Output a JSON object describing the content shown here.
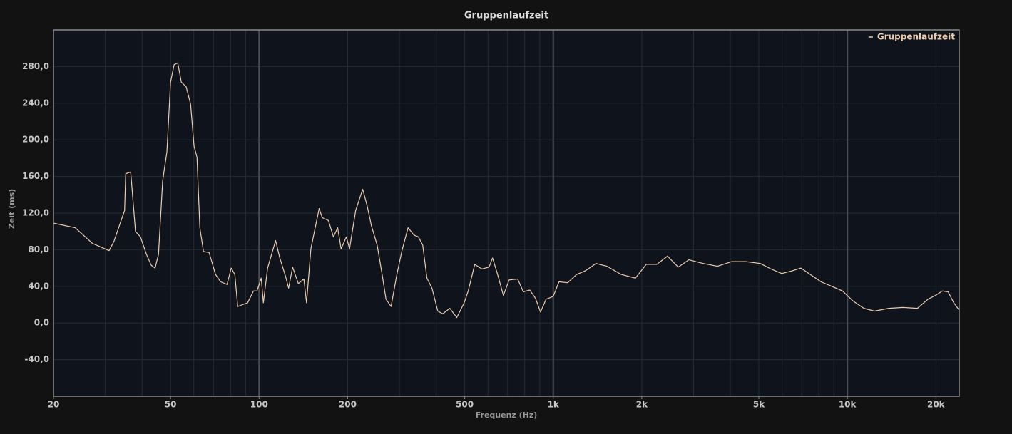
{
  "chart_data": {
    "type": "line",
    "title": "Gruppenlaufzeit",
    "x_label": "Frequenz (Hz)",
    "y_label": "Zeit (ms)",
    "x_scale": "log",
    "xlim": [
      20,
      24000
    ],
    "ylim": [
      -80,
      320
    ],
    "xticks": [
      20,
      50,
      100,
      200,
      500,
      {
        "value": 1000,
        "label": "1k"
      },
      {
        "value": 2000,
        "label": "2k"
      },
      {
        "value": 5000,
        "label": "5k"
      },
      {
        "value": 10000,
        "label": "10k"
      },
      {
        "value": 20000,
        "label": "20k"
      }
    ],
    "x_minor_grid": [
      30,
      40,
      60,
      70,
      80,
      90,
      300,
      400,
      600,
      700,
      800,
      900,
      3000,
      4000,
      6000,
      7000,
      8000,
      9000
    ],
    "yticks": [
      {
        "value": -40,
        "label": "-40,0"
      },
      {
        "value": 0,
        "label": "0,0"
      },
      {
        "value": 40,
        "label": "40,0"
      },
      {
        "value": 80,
        "label": "80,0"
      },
      {
        "value": 120,
        "label": "120,0"
      },
      {
        "value": 160,
        "label": "160,0"
      },
      {
        "value": 200,
        "label": "200,0"
      },
      {
        "value": 240,
        "label": "240,0"
      },
      {
        "value": 280,
        "label": "280,0"
      }
    ],
    "grid": true,
    "legend": "top-right",
    "x": [
      20,
      23.7,
      27.1,
      30.9,
      32.1,
      34.9,
      35.2,
      36.6,
      38.0,
      39.5,
      41.4,
      43.0,
      44.3,
      45.5,
      47.0,
      48.6,
      50.0,
      51.4,
      52.9,
      54.4,
      56.5,
      58.5,
      60.1,
      61.5,
      62.9,
      64.7,
      67.6,
      71.1,
      74.0,
      77.8,
      80.4,
      82.7,
      84.6,
      87.9,
      91.4,
      95.7,
      98.4,
      101.7,
      103.4,
      106.9,
      113.8,
      117.6,
      123,
      126,
      130,
      136,
      142,
      145,
      150,
      160,
      164,
      172,
      179,
      185,
      190,
      198,
      203,
      213,
      225,
      233,
      241,
      252,
      262,
      270,
      281,
      294,
      306,
      321,
      336,
      348,
      360,
      372,
      387,
      405,
      421,
      445,
      470,
      498,
      514,
      541,
      572,
      605,
      622,
      647,
      677,
      708,
      757,
      791,
      832,
      870,
      905,
      946,
      1000,
      1046,
      1119,
      1202,
      1286,
      1399,
      1522,
      1702,
      1903,
      2070,
      2250,
      2446,
      2660,
      2892,
      3234,
      3616,
      4044,
      4522,
      5056,
      5498,
      5982,
      6504,
      6950,
      7480,
      8132,
      8852,
      9618,
      10452,
      11376,
      12360,
      13836,
      15460,
      17300,
      18800,
      19900,
      21040,
      22000,
      23000,
      24000
    ],
    "series": [
      {
        "name": "Gruppenlaufzeit",
        "color": "#ecccae",
        "values": [
          109,
          104,
          87,
          79,
          89,
          123,
          163,
          165,
          100,
          94,
          75,
          63,
          60,
          75,
          155,
          187,
          263,
          282,
          284,
          263,
          258,
          239,
          193,
          181,
          104,
          78,
          77,
          53,
          45,
          42,
          60,
          53,
          18,
          20,
          22,
          35,
          35,
          49,
          22,
          60,
          90,
          71,
          51,
          38,
          61,
          43,
          48,
          22,
          81,
          125,
          115,
          112,
          94,
          104,
          81,
          94,
          81,
          123,
          146,
          128,
          106,
          85,
          53,
          26,
          18,
          53,
          79,
          104,
          96,
          94,
          85,
          49,
          38,
          13,
          10,
          16,
          6,
          22,
          35,
          64,
          59,
          61,
          71,
          53,
          30,
          47,
          48,
          34,
          36,
          27,
          12,
          26,
          29,
          45,
          44,
          53,
          57,
          65,
          62,
          53,
          49,
          64,
          64,
          73,
          61,
          69,
          65,
          62,
          67,
          67,
          65,
          59,
          54,
          57,
          60,
          53,
          45,
          40,
          35,
          24,
          16,
          13,
          16,
          17,
          16,
          26,
          30,
          35,
          34,
          22,
          14
        ]
      }
    ]
  }
}
